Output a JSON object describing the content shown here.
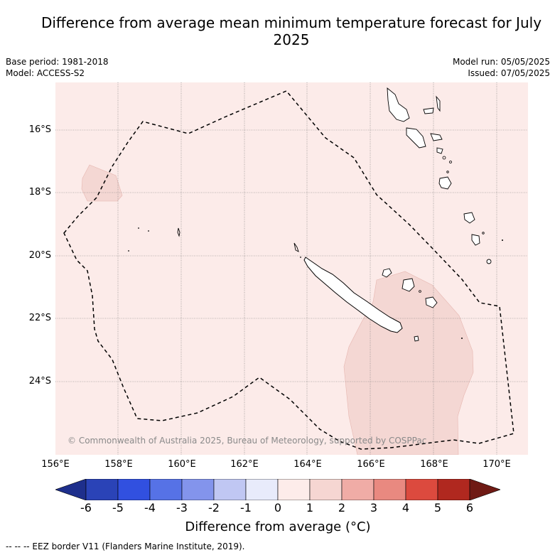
{
  "title": "Difference from average mean minimum temperature forecast for July 2025",
  "base_period": "Base period: 1981-2018",
  "model": "Model: ACCESS-S2",
  "model_run": "Model run: 05/05/2025",
  "issued": "Issued: 07/05/2025",
  "copyright": "© Commonwealth of Australia 2025, Bureau of Meteorology, supported by COSPPac",
  "latitude_labels": [
    "16°S",
    "18°S",
    "20°S",
    "22°S",
    "24°S"
  ],
  "longitude_labels": [
    "156°E",
    "158°E",
    "160°E",
    "162°E",
    "164°E",
    "166°E",
    "168°E",
    "170°E"
  ],
  "colorbar": {
    "label": "Difference from average (°C)",
    "ticks": [
      "-6",
      "-5",
      "-4",
      "-3",
      "-2",
      "-1",
      "0",
      "1",
      "2",
      "3",
      "4",
      "5",
      "6"
    ],
    "colors": [
      "#1e2f8c",
      "#2a43b7",
      "#3150e0",
      "#5672e6",
      "#8394ec",
      "#c0c7f3",
      "#e8ebfb",
      "#fdecea",
      "#f6d6d2",
      "#f0aca6",
      "#e98980",
      "#dc4a3e",
      "#b0281f",
      "#6f1a14"
    ]
  },
  "map_colors": {
    "background_anomaly": "#fcebe9",
    "warm_anomaly": "#f4d7d3"
  },
  "legend_note": "-- -- -- EEZ border V11 (Flanders Marine Institute, 2019)."
}
